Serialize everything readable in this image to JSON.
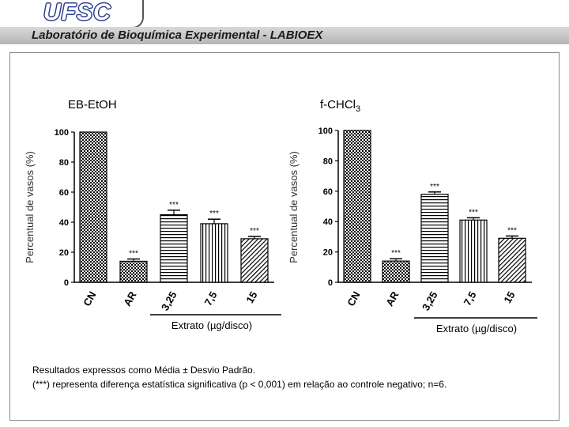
{
  "header": {
    "logo": "UFSC",
    "banner": "Laboratório de Bioquímica Experimental - LABIOEX"
  },
  "colors": {
    "logo": "#2a3f8a",
    "banner": "#c8c8c8",
    "bars": "#000000"
  },
  "chart_data": [
    {
      "type": "bar",
      "title": "EB-EtOH",
      "ylabel": "Percentual de vasos (%)",
      "xgroup_label": "Extrato (µg/disco)",
      "categories": [
        "CN",
        "AR",
        "3,25",
        "7,5",
        "15"
      ],
      "values": [
        100,
        14,
        45,
        39,
        29
      ],
      "errors": [
        0,
        1.5,
        3,
        3,
        1.5
      ],
      "significance": [
        "",
        "***",
        "***",
        "***",
        "***"
      ],
      "patterns": [
        "checker",
        "checker",
        "hlines",
        "vlines",
        "diag"
      ],
      "ylim": [
        0,
        100
      ],
      "yticks": [
        0,
        20,
        40,
        60,
        80,
        100
      ],
      "grid": false
    },
    {
      "type": "bar",
      "title": "f-CHCl",
      "title_sub": "3",
      "ylabel": "Percentual de vasos (%)",
      "xgroup_label": "Extrato (µg/disco)",
      "categories": [
        "CN",
        "AR",
        "3,25",
        "7,5",
        "15"
      ],
      "values": [
        100,
        14,
        58,
        41,
        29
      ],
      "errors": [
        0,
        1.5,
        1.5,
        1.5,
        1.5
      ],
      "significance": [
        "",
        "***",
        "***",
        "***",
        "***"
      ],
      "patterns": [
        "checker",
        "checker",
        "hlines",
        "vlines",
        "diag"
      ],
      "ylim": [
        0,
        100
      ],
      "yticks": [
        0,
        20,
        40,
        60,
        80,
        100
      ],
      "grid": false
    }
  ],
  "footer": {
    "line1": "Resultados expressos como Média ± Desvio Padrão.",
    "line2": "(***) representa diferença estatística significativa (p < 0,001) em relação ao controle negativo; n=6."
  }
}
